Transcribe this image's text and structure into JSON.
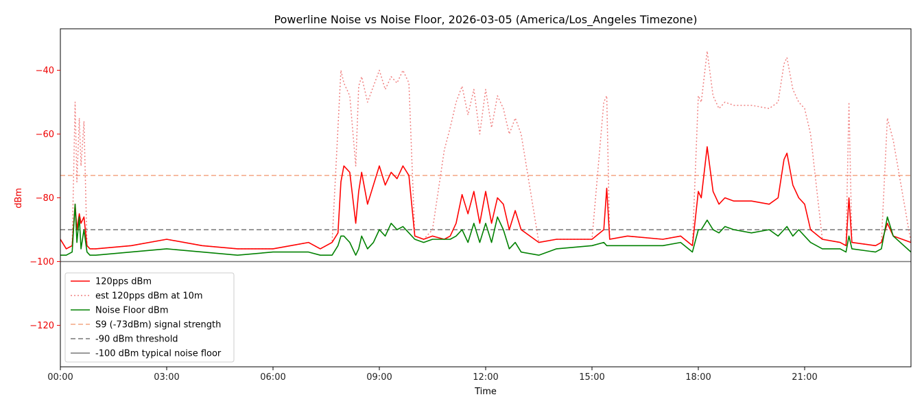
{
  "chart_data": {
    "type": "line",
    "title": "Powerline Noise vs Noise Floor, 2026-03-05 (America/Los_Angeles Timezone)",
    "xlabel": "Time",
    "ylabel": "dBm",
    "xlim": [
      "00:00",
      "24:00"
    ],
    "ylim": [
      -133,
      -27
    ],
    "xticks": [
      "00:00",
      "03:00",
      "06:00",
      "09:00",
      "12:00",
      "15:00",
      "18:00",
      "21:00"
    ],
    "yticks": [
      -40,
      -60,
      -80,
      -100,
      -120
    ],
    "grid": false,
    "legend_position": "lower-left",
    "series": [
      {
        "name": "120pps dBm",
        "color": "#ff0000",
        "style": "solid",
        "x": [
          "00:00",
          "00:10",
          "00:20",
          "00:25",
          "00:28",
          "00:32",
          "00:35",
          "00:40",
          "00:45",
          "00:50",
          "01:00",
          "02:00",
          "03:00",
          "04:00",
          "05:00",
          "06:00",
          "06:30",
          "07:00",
          "07:20",
          "07:40",
          "07:50",
          "07:55",
          "08:00",
          "08:10",
          "08:20",
          "08:25",
          "08:30",
          "08:40",
          "08:50",
          "09:00",
          "09:10",
          "09:20",
          "09:30",
          "09:40",
          "09:50",
          "10:00",
          "10:15",
          "10:30",
          "10:50",
          "11:00",
          "11:10",
          "11:20",
          "11:30",
          "11:40",
          "11:50",
          "12:00",
          "12:10",
          "12:20",
          "12:30",
          "12:40",
          "12:50",
          "13:00",
          "13:30",
          "14:00",
          "15:00",
          "15:20",
          "15:25",
          "15:30",
          "16:00",
          "17:00",
          "17:30",
          "17:50",
          "18:00",
          "18:05",
          "18:15",
          "18:25",
          "18:35",
          "18:45",
          "19:00",
          "19:30",
          "20:00",
          "20:15",
          "20:25",
          "20:30",
          "20:40",
          "20:50",
          "21:00",
          "21:10",
          "21:30",
          "22:00",
          "22:10",
          "22:15",
          "22:20",
          "23:00",
          "23:10",
          "23:20",
          "23:30",
          "24:00"
        ],
        "values": [
          -93,
          -96,
          -95,
          -82,
          -90,
          -85,
          -88,
          -86,
          -95,
          -96,
          -96,
          -95,
          -93,
          -95,
          -96,
          -96,
          -95,
          -94,
          -96,
          -94,
          -91,
          -75,
          -70,
          -72,
          -88,
          -78,
          -72,
          -82,
          -76,
          -70,
          -76,
          -72,
          -74,
          -70,
          -73,
          -92,
          -93,
          -92,
          -93,
          -92,
          -88,
          -79,
          -85,
          -78,
          -88,
          -78,
          -88,
          -80,
          -82,
          -90,
          -84,
          -90,
          -94,
          -93,
          -93,
          -90,
          -77,
          -93,
          -92,
          -93,
          -92,
          -95,
          -78,
          -80,
          -64,
          -78,
          -82,
          -80,
          -81,
          -81,
          -82,
          -80,
          -68,
          -66,
          -76,
          -80,
          -82,
          -90,
          -93,
          -94,
          -95,
          -80,
          -94,
          -95,
          -94,
          -88,
          -92,
          -94
        ]
      },
      {
        "name": "est 120pps dBm at 10m",
        "color": "#f08080",
        "style": "dotted",
        "x": [
          "00:00",
          "00:10",
          "00:20",
          "00:25",
          "00:28",
          "00:32",
          "00:35",
          "00:40",
          "00:45",
          "00:50",
          "01:00",
          "02:00",
          "03:00",
          "04:00",
          "05:00",
          "06:00",
          "06:30",
          "07:00",
          "07:20",
          "07:40",
          "07:50",
          "07:55",
          "08:00",
          "08:10",
          "08:20",
          "08:25",
          "08:30",
          "08:40",
          "08:50",
          "09:00",
          "09:10",
          "09:20",
          "09:30",
          "09:40",
          "09:50",
          "10:00",
          "10:15",
          "10:30",
          "10:50",
          "11:00",
          "11:10",
          "11:20",
          "11:30",
          "11:40",
          "11:50",
          "12:00",
          "12:10",
          "12:20",
          "12:30",
          "12:40",
          "12:50",
          "13:00",
          "13:30",
          "14:00",
          "15:00",
          "15:20",
          "15:25",
          "15:30",
          "16:00",
          "17:00",
          "17:30",
          "17:50",
          "18:00",
          "18:05",
          "18:15",
          "18:25",
          "18:35",
          "18:45",
          "19:00",
          "19:30",
          "20:00",
          "20:15",
          "20:25",
          "20:30",
          "20:40",
          "20:50",
          "21:00",
          "21:10",
          "21:30",
          "22:00",
          "22:10",
          "22:15",
          "22:20",
          "23:00",
          "23:10",
          "23:20",
          "23:30",
          "24:00"
        ],
        "values": [
          -93,
          -96,
          -95,
          -50,
          -75,
          -55,
          -70,
          -56,
          -95,
          -96,
          -96,
          -95,
          -93,
          -95,
          -96,
          -96,
          -95,
          -94,
          -96,
          -94,
          -58,
          -40,
          -44,
          -48,
          -70,
          -45,
          -42,
          -50,
          -45,
          -40,
          -46,
          -42,
          -44,
          -40,
          -44,
          -92,
          -93,
          -90,
          -65,
          -58,
          -50,
          -45,
          -54,
          -46,
          -60,
          -46,
          -58,
          -48,
          -52,
          -60,
          -55,
          -60,
          -94,
          -93,
          -93,
          -50,
          -48,
          -93,
          -92,
          -93,
          -92,
          -95,
          -48,
          -50,
          -34,
          -48,
          -52,
          -50,
          -51,
          -51,
          -52,
          -50,
          -38,
          -36,
          -46,
          -50,
          -52,
          -60,
          -93,
          -94,
          -95,
          -50,
          -94,
          -95,
          -94,
          -55,
          -62,
          -94
        ]
      },
      {
        "name": "Noise Floor dBm",
        "color": "#008000",
        "style": "solid",
        "x": [
          "00:00",
          "00:10",
          "00:20",
          "00:25",
          "00:28",
          "00:32",
          "00:35",
          "00:40",
          "00:45",
          "00:50",
          "01:00",
          "02:00",
          "03:00",
          "04:00",
          "05:00",
          "06:00",
          "06:30",
          "07:00",
          "07:20",
          "07:40",
          "07:50",
          "07:55",
          "08:00",
          "08:10",
          "08:20",
          "08:25",
          "08:30",
          "08:40",
          "08:50",
          "09:00",
          "09:10",
          "09:20",
          "09:30",
          "09:40",
          "09:50",
          "10:00",
          "10:15",
          "10:30",
          "10:50",
          "11:00",
          "11:10",
          "11:20",
          "11:30",
          "11:40",
          "11:50",
          "12:00",
          "12:10",
          "12:20",
          "12:30",
          "12:40",
          "12:50",
          "13:00",
          "13:30",
          "14:00",
          "15:00",
          "15:20",
          "15:25",
          "15:30",
          "16:00",
          "17:00",
          "17:30",
          "17:50",
          "18:00",
          "18:05",
          "18:15",
          "18:25",
          "18:35",
          "18:45",
          "19:00",
          "19:30",
          "20:00",
          "20:15",
          "20:25",
          "20:30",
          "20:40",
          "20:50",
          "21:00",
          "21:10",
          "21:30",
          "22:00",
          "22:10",
          "22:15",
          "22:20",
          "23:00",
          "23:10",
          "23:20",
          "23:30",
          "24:00"
        ],
        "values": [
          -98,
          -98,
          -97,
          -82,
          -94,
          -86,
          -96,
          -90,
          -97,
          -98,
          -98,
          -97,
          -96,
          -97,
          -98,
          -97,
          -97,
          -97,
          -98,
          -98,
          -95,
          -92,
          -92,
          -94,
          -98,
          -96,
          -92,
          -96,
          -94,
          -90,
          -92,
          -88,
          -90,
          -89,
          -91,
          -93,
          -94,
          -93,
          -93,
          -93,
          -92,
          -90,
          -94,
          -88,
          -94,
          -88,
          -94,
          -86,
          -90,
          -96,
          -94,
          -97,
          -98,
          -96,
          -95,
          -94,
          -95,
          -95,
          -95,
          -95,
          -94,
          -97,
          -90,
          -90,
          -87,
          -90,
          -91,
          -89,
          -90,
          -91,
          -90,
          -92,
          -90,
          -89,
          -92,
          -90,
          -92,
          -94,
          -96,
          -96,
          -97,
          -92,
          -96,
          -97,
          -96,
          -86,
          -92,
          -97
        ]
      },
      {
        "name": "S9 (-73dBm) signal strength",
        "color": "#f4a582",
        "style": "dashed",
        "x": [
          "00:00",
          "24:00"
        ],
        "values": [
          -73,
          -73
        ]
      },
      {
        "name": "-90 dBm threshold",
        "color": "#777777",
        "style": "dashed",
        "x": [
          "00:00",
          "24:00"
        ],
        "values": [
          -90,
          -90
        ]
      },
      {
        "name": "-100 dBm typical noise floor",
        "color": "#777777",
        "style": "solid",
        "x": [
          "00:00",
          "24:00"
        ],
        "values": [
          -100,
          -100
        ]
      }
    ]
  }
}
